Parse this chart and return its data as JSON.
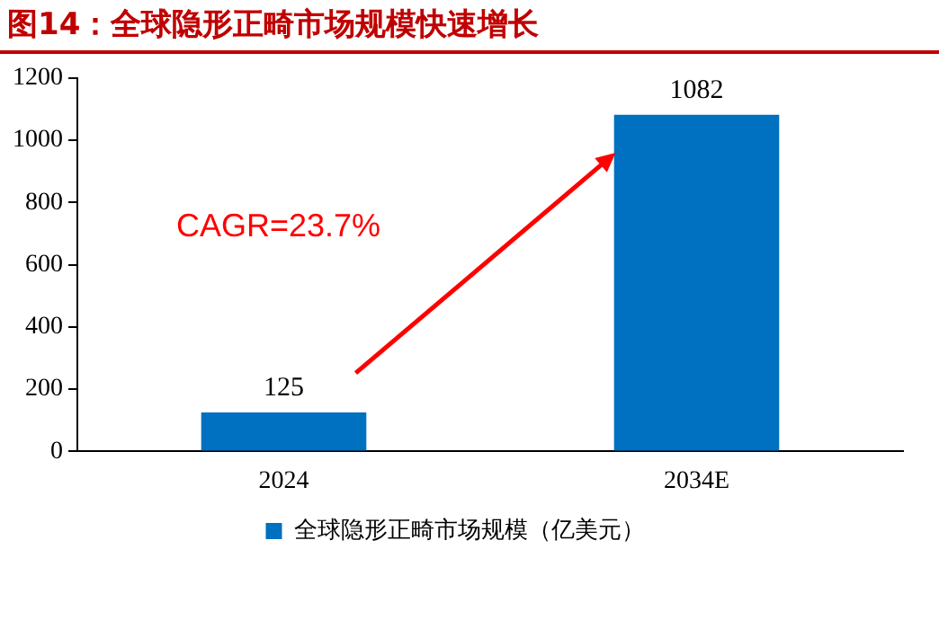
{
  "chart_data": {
    "type": "bar",
    "title": "图14：全球隐形正畸市场规模快速增长",
    "categories": [
      "2024",
      "2034E"
    ],
    "series": [
      {
        "name": "全球隐形正畸市场规模（亿美元）",
        "color": "#0070c0",
        "values": [
          125,
          1082
        ]
      }
    ],
    "ylim": [
      0,
      1200
    ],
    "yticks": [
      0,
      200,
      400,
      600,
      800,
      1000,
      1200
    ],
    "grid": false,
    "legend": "bottom",
    "data_labels": true,
    "annotations": [
      "CAGR=23.7%"
    ]
  }
}
